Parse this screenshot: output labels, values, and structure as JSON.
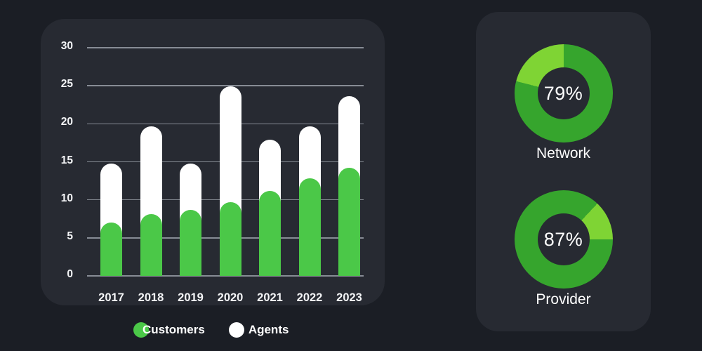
{
  "theme": {
    "page_bg": "#1b1e25",
    "card_bg": "#272a32",
    "grid_color": "#878c95",
    "bar_green": "#4bc848",
    "bar_white": "#ffffff",
    "donut_dark_green": "#36a52d",
    "donut_light_green": "#7fd434",
    "text_color": "#ffffff"
  },
  "legend": [
    {
      "label": "Customers",
      "color_key": "bar_green"
    },
    {
      "label": "Agents",
      "color_key": "bar_white"
    }
  ],
  "chart_data": [
    {
      "type": "bar",
      "title": "",
      "xlabel": "",
      "ylabel": "",
      "categories": [
        "2017",
        "2018",
        "2019",
        "2020",
        "2021",
        "2022",
        "2023"
      ],
      "series": [
        {
          "name": "Customers",
          "color": "#4bc848",
          "values": [
            7.0,
            8.1,
            8.7,
            9.7,
            11.2,
            12.8,
            14.2
          ]
        },
        {
          "name": "Agents",
          "color": "#ffffff",
          "values": [
            14.8,
            19.7,
            14.8,
            24.9,
            17.9,
            19.7,
            23.6
          ]
        }
      ],
      "ylim": [
        0,
        30
      ],
      "yticks": [
        0,
        5,
        10,
        15,
        20,
        25,
        30
      ],
      "grid": true,
      "legend_position": "bottom",
      "style_note": "rounded pill bars; white Agents bar drawn full-height behind green Customers bar"
    },
    {
      "type": "pie",
      "subtype": "donut",
      "title": "Network",
      "center_text": "79%",
      "labels": [
        "filled",
        "remainder"
      ],
      "values": [
        79,
        21
      ],
      "colors": [
        "#36a52d",
        "#7fd434"
      ]
    },
    {
      "type": "pie",
      "subtype": "donut",
      "title": "Provider",
      "center_text": "87%",
      "labels": [
        "filled",
        "remainder"
      ],
      "values": [
        87,
        13
      ],
      "colors": [
        "#36a52d",
        "#7fd434"
      ]
    }
  ]
}
